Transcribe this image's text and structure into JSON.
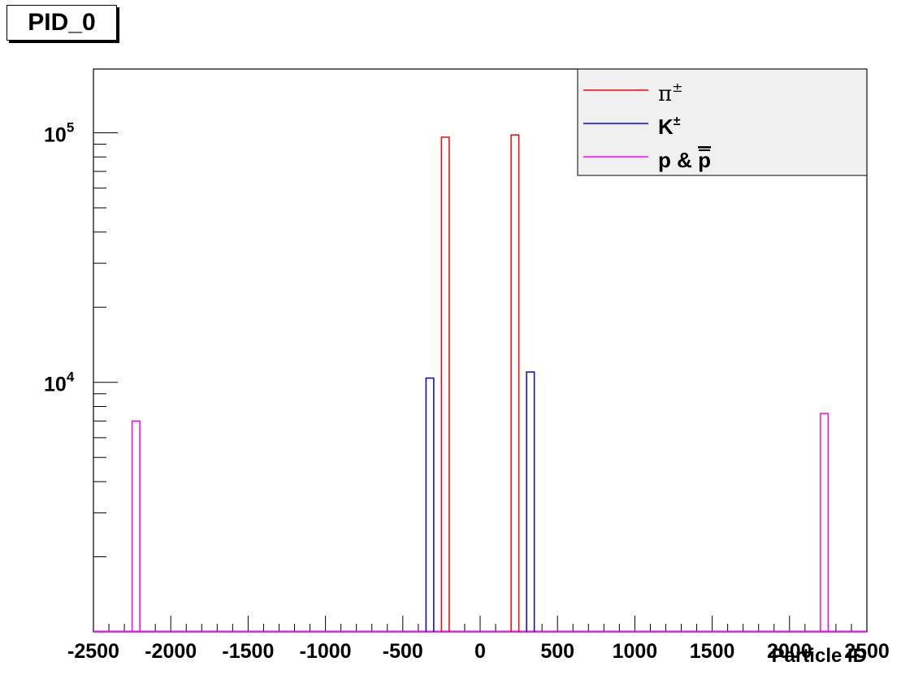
{
  "title": "PID_0",
  "chart_data": {
    "type": "bar",
    "style": "step-histogram",
    "xlabel": "Particle ID",
    "ylabel": "",
    "xlim": [
      -2500,
      2500
    ],
    "ylim": [
      1000,
      180000
    ],
    "yscale": "log",
    "x_tick_labels": [
      "-2500",
      "-2000",
      "-1500",
      "-1000",
      "-500",
      "0",
      "500",
      "1000",
      "1500",
      "2000",
      "2500"
    ],
    "x_ticks": [
      -2500,
      -2000,
      -1500,
      -1000,
      -500,
      0,
      500,
      1000,
      1500,
      2000,
      2500
    ],
    "y_tick_labels": [
      {
        "base": "10",
        "exp": "5",
        "value": 100000
      },
      {
        "base": "10",
        "exp": "4",
        "value": 10000
      }
    ],
    "grid": false,
    "legend_position": "top-right",
    "series": [
      {
        "name": "π±",
        "symbol": "π",
        "sup": "±",
        "color": "#ff0000",
        "bins": [
          {
            "x0": -250,
            "x1": -200,
            "value": 96000
          },
          {
            "x0": 200,
            "x1": 250,
            "value": 98000
          }
        ]
      },
      {
        "name": "K±",
        "symbol": "K",
        "sup": "±",
        "color": "#0000ff",
        "bins": [
          {
            "x0": -350,
            "x1": -300,
            "value": 10400
          },
          {
            "x0": 300,
            "x1": 350,
            "value": 11000
          }
        ]
      },
      {
        "name": "p & p̄",
        "symbol": "p & ",
        "bar_symbol": "p",
        "color": "#ff00ff",
        "bins": [
          {
            "x0": -2250,
            "x1": -2200,
            "value": 7000
          },
          {
            "x0": 2200,
            "x1": 2250,
            "value": 7500
          }
        ]
      }
    ]
  }
}
